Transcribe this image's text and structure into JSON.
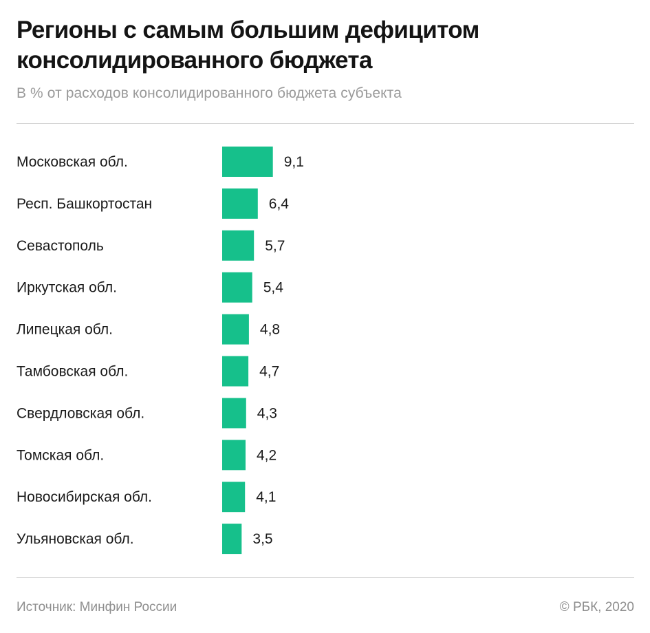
{
  "title": "Регионы с самым большим дефицитом консолидированного бюджета",
  "subtitle": "В % от расходов консолидированного бюджета субъекта",
  "footer": {
    "source": "Источник: Минфин России",
    "copyright": "© РБК, 2020"
  },
  "colors": {
    "bar": "#16c08b",
    "label": "#1a1a1a"
  },
  "chart_data": {
    "type": "bar",
    "orientation": "horizontal",
    "categories": [
      "Московская обл.",
      "Респ. Башкортостан",
      "Севастополь",
      "Иркутская обл.",
      "Липецкая обл.",
      "Тамбовская обл.",
      "Свердловская обл.",
      "Томская обл.",
      "Новосибирская обл.",
      "Ульяновская обл."
    ],
    "values": [
      9.1,
      6.4,
      5.7,
      5.4,
      4.8,
      4.7,
      4.3,
      4.2,
      4.1,
      3.5
    ],
    "value_labels": [
      "9,1",
      "6,4",
      "5,7",
      "5,4",
      "4,8",
      "4,7",
      "4,3",
      "4,2",
      "4,1",
      "3,5"
    ],
    "title": "Регионы с самым большим дефицитом консолидированного бюджета",
    "xlabel": "",
    "ylabel": "",
    "grid": false,
    "legend": "none"
  }
}
